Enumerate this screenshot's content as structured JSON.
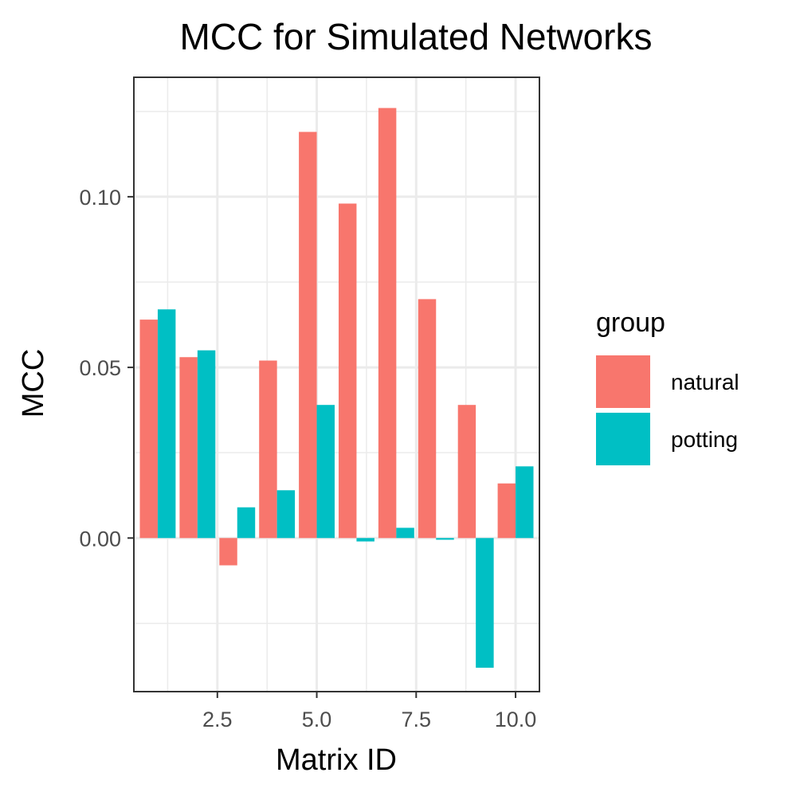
{
  "chart_data": {
    "type": "bar",
    "title": "MCC for Simulated Networks",
    "xlabel": "Matrix ID",
    "ylabel": "MCC",
    "x": [
      1,
      2,
      3,
      4,
      5,
      6,
      7,
      8,
      9,
      10
    ],
    "xlim": [
      0.4,
      10.6
    ],
    "ylim": [
      -0.045,
      0.135
    ],
    "x_ticks": [
      2.5,
      5.0,
      7.5,
      10.0
    ],
    "x_tick_labels": [
      "2.5",
      "5.0",
      "7.5",
      "10.0"
    ],
    "x_minor_ticks": [
      1.25,
      3.75,
      6.25,
      8.75
    ],
    "y_ticks": [
      0.0,
      0.05,
      0.1
    ],
    "y_tick_labels": [
      "0.00",
      "0.05",
      "0.10"
    ],
    "y_minor_ticks": [
      -0.025,
      0.025,
      0.075,
      0.125
    ],
    "grid": true,
    "legend": {
      "title": "group",
      "position": "right",
      "entries": [
        "natural",
        "potting"
      ]
    },
    "series": [
      {
        "name": "natural",
        "color": "#F8766D",
        "values": [
          0.064,
          0.053,
          -0.008,
          0.052,
          0.119,
          0.098,
          0.126,
          0.07,
          0.039,
          0.016
        ]
      },
      {
        "name": "potting",
        "color": "#00BFC4",
        "values": [
          0.067,
          0.055,
          0.009,
          0.014,
          0.039,
          -0.001,
          0.003,
          -0.0005,
          -0.038,
          0.021
        ]
      }
    ]
  }
}
